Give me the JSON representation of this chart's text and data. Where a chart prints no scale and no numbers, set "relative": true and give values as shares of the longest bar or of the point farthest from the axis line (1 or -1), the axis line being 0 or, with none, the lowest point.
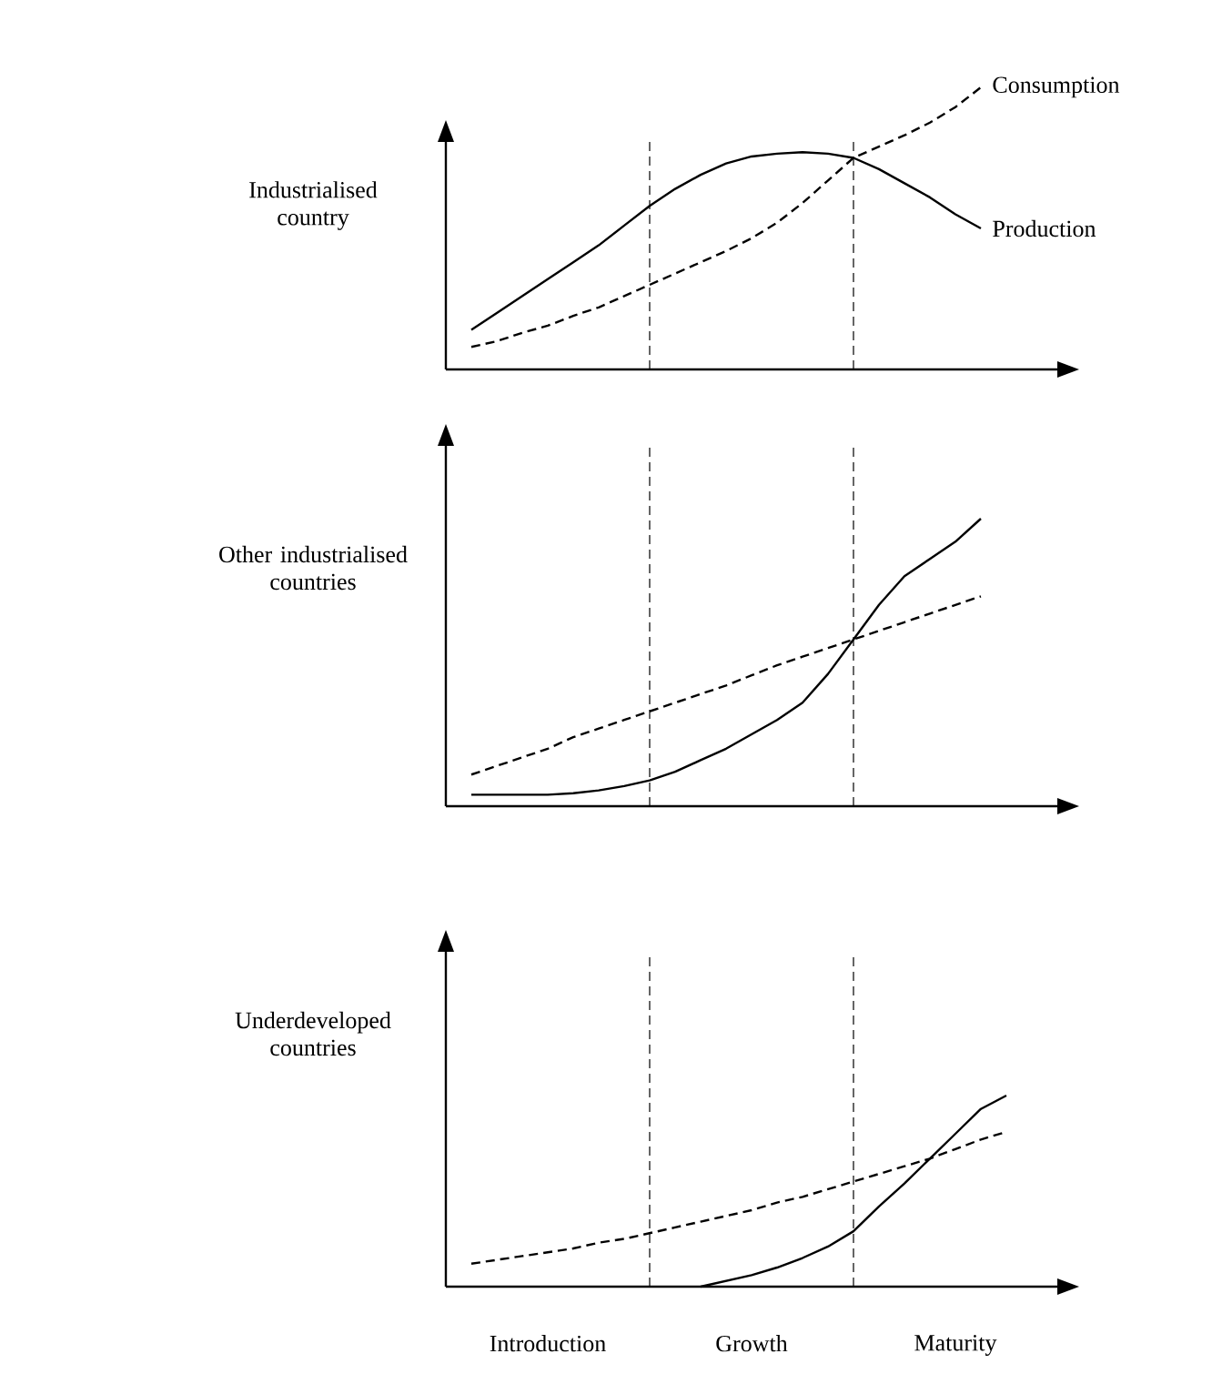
{
  "chart_data": [
    {
      "type": "line",
      "ylabel": "Industrialised country",
      "relative": true,
      "categories": [
        null,
        null,
        null,
        null,
        null,
        null,
        null,
        null,
        null,
        null,
        null,
        null,
        null,
        null,
        null,
        null,
        null,
        null,
        null,
        null,
        null,
        null
      ],
      "series": [
        {
          "name": "Production",
          "color": "#000000",
          "line_style": "solid",
          "values": [
            0.14,
            0.2,
            0.26,
            0.32,
            0.38,
            0.44,
            0.51,
            0.58,
            0.64,
            0.69,
            0.73,
            0.755,
            0.765,
            0.77,
            0.765,
            0.75,
            0.71,
            0.66,
            0.61,
            0.55,
            0.5,
            null
          ]
        },
        {
          "name": "Consumption",
          "color": "#000000",
          "line_style": "dashed",
          "values": [
            0.08,
            0.1,
            0.13,
            0.155,
            0.19,
            0.22,
            0.26,
            0.3,
            0.34,
            0.38,
            0.42,
            0.465,
            0.52,
            0.59,
            0.67,
            0.75,
            0.79,
            0.83,
            0.875,
            0.93,
            1.0,
            null
          ]
        }
      ]
    },
    {
      "type": "line",
      "ylabel": "Other industrialised countries",
      "relative": true,
      "categories": [
        null,
        null,
        null,
        null,
        null,
        null,
        null,
        null,
        null,
        null,
        null,
        null,
        null,
        null,
        null,
        null,
        null,
        null,
        null,
        null,
        null,
        null
      ],
      "series": [
        {
          "color": "#000000",
          "line_style": "solid",
          "values": [
            0.04,
            0.04,
            0.04,
            0.04,
            0.045,
            0.055,
            0.07,
            0.09,
            0.12,
            0.16,
            0.2,
            0.25,
            0.3,
            0.36,
            0.46,
            0.58,
            0.7,
            0.8,
            0.86,
            0.92,
            1.0,
            null
          ]
        },
        {
          "color": "#000000",
          "line_style": "dashed",
          "values": [
            0.11,
            0.14,
            0.17,
            0.2,
            0.24,
            0.27,
            0.3,
            0.33,
            0.36,
            0.39,
            0.42,
            0.455,
            0.49,
            0.52,
            0.55,
            0.58,
            0.61,
            0.64,
            0.67,
            0.7,
            0.73,
            null
          ]
        }
      ]
    },
    {
      "type": "line",
      "ylabel": "Underdeveloped countries",
      "relative": true,
      "categories": [
        null,
        null,
        null,
        "Introduction",
        null,
        null,
        null,
        null,
        null,
        null,
        null,
        "Growth",
        null,
        null,
        null,
        null,
        null,
        null,
        null,
        "Maturity",
        null,
        null
      ],
      "series": [
        {
          "color": "#000000",
          "line_style": "solid",
          "values": [
            null,
            null,
            null,
            null,
            null,
            null,
            null,
            null,
            null,
            0.0,
            0.03,
            0.06,
            0.1,
            0.15,
            0.21,
            0.29,
            0.42,
            0.54,
            0.67,
            0.8,
            0.93,
            1.0
          ]
        },
        {
          "color": "#000000",
          "line_style": "dashed",
          "values": [
            0.12,
            0.14,
            0.16,
            0.18,
            0.2,
            0.23,
            0.25,
            0.28,
            0.31,
            0.34,
            0.37,
            0.4,
            0.44,
            0.47,
            0.51,
            0.55,
            0.59,
            0.63,
            0.67,
            0.72,
            0.77,
            0.81
          ]
        }
      ]
    }
  ]
}
